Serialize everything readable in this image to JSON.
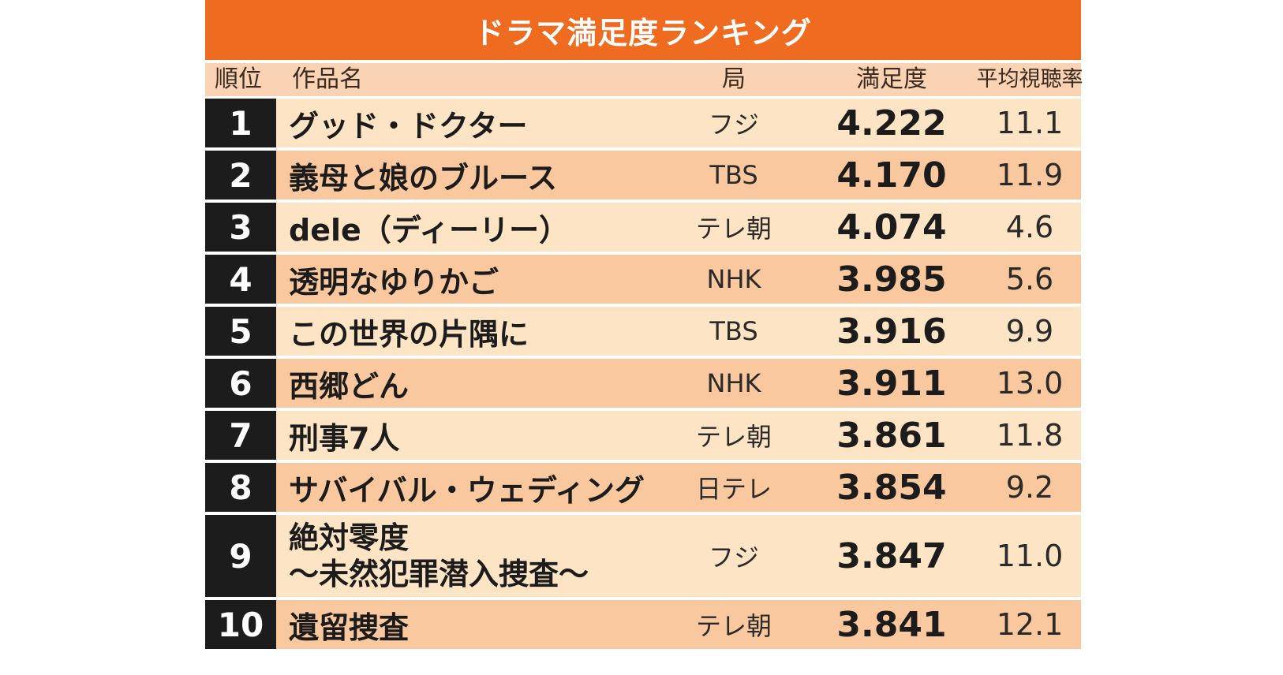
{
  "title": "ドラマ満足度ランキング",
  "headers": {
    "rank": "順位",
    "title": "作品名",
    "station": "局",
    "score": "満足度",
    "rating": "平均視聴率"
  },
  "rows": [
    {
      "rank": "1",
      "title": [
        "グッド・ドクター"
      ],
      "station": "フジ",
      "score": "4.222",
      "rating": "11.1"
    },
    {
      "rank": "2",
      "title": [
        "義母と娘のブルース"
      ],
      "station": "TBS",
      "score": "4.170",
      "rating": "11.9"
    },
    {
      "rank": "3",
      "title": [
        "dele（ディーリー）"
      ],
      "station": "テレ朝",
      "score": "4.074",
      "rating": "4.6"
    },
    {
      "rank": "4",
      "title": [
        "透明なゆりかご"
      ],
      "station": "NHK",
      "score": "3.985",
      "rating": "5.6"
    },
    {
      "rank": "5",
      "title": [
        "この世界の片隅に"
      ],
      "station": "TBS",
      "score": "3.916",
      "rating": "9.9"
    },
    {
      "rank": "6",
      "title": [
        "西郷どん"
      ],
      "station": "NHK",
      "score": "3.911",
      "rating": "13.0"
    },
    {
      "rank": "7",
      "title": [
        "刑事7人"
      ],
      "station": "テレ朝",
      "score": "3.861",
      "rating": "11.8"
    },
    {
      "rank": "8",
      "title": [
        "サバイバル・ウェディング"
      ],
      "station": "日テレ",
      "score": "3.854",
      "rating": "9.2"
    },
    {
      "rank": "9",
      "title": [
        "絶対零度",
        "～未然犯罪潜入捜査～"
      ],
      "station": "フジ",
      "score": "3.847",
      "rating": "11.0"
    },
    {
      "rank": "10",
      "title": [
        "遺留捜査"
      ],
      "station": "テレ朝",
      "score": "3.841",
      "rating": "12.1"
    }
  ]
}
